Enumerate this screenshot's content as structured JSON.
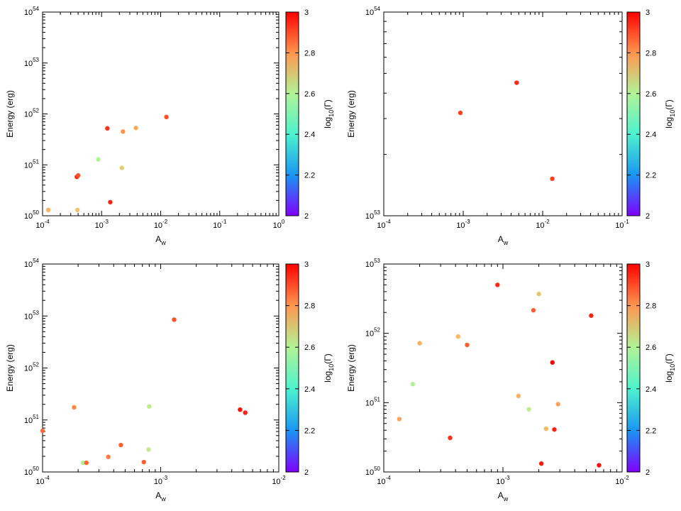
{
  "chart_data": [
    {
      "type": "scatter",
      "xscale": "log",
      "yscale": "log",
      "xlabel": "A_w",
      "ylabel": "Energy (erg)",
      "xlim": [
        0.0001,
        1
      ],
      "ylim": [
        1e+50,
        1e+54
      ],
      "xticks": [
        "10^-4",
        "10^-3",
        "10^-2",
        "10^-1",
        "10^0"
      ],
      "yticks": [
        "10^50",
        "10^51",
        "10^52",
        "10^53",
        "10^54"
      ],
      "colorbar": {
        "label": "log_10(Γ)",
        "range": [
          2,
          3
        ],
        "ticks": [
          "2",
          "2.2",
          "2.4",
          "2.6",
          "2.8",
          "3"
        ]
      },
      "points": [
        {
          "x": 0.000125,
          "y": 1.3e+50,
          "c": 2.76
        },
        {
          "x": 0.00039,
          "y": 1.3e+50,
          "c": 2.72
        },
        {
          "x": 0.00038,
          "y": 5.8e+50,
          "c": 2.95
        },
        {
          "x": 0.0004,
          "y": 6.2e+50,
          "c": 2.9
        },
        {
          "x": 0.00088,
          "y": 1.28e+51,
          "c": 2.6
        },
        {
          "x": 0.00125,
          "y": 5.2e+51,
          "c": 2.94
        },
        {
          "x": 0.0014,
          "y": 1.85e+50,
          "c": 2.96
        },
        {
          "x": 0.0022,
          "y": 8.7e+50,
          "c": 2.7
        },
        {
          "x": 0.0023,
          "y": 4.5e+51,
          "c": 2.8
        },
        {
          "x": 0.0038,
          "y": 5.3e+51,
          "c": 2.77
        },
        {
          "x": 0.0125,
          "y": 8.7e+51,
          "c": 2.9
        }
      ]
    },
    {
      "type": "scatter",
      "xscale": "log",
      "yscale": "log",
      "xlabel": "A_w",
      "ylabel": "Energy (erg)",
      "xlim": [
        0.0001,
        0.1
      ],
      "ylim": [
        1e+53,
        1e+54
      ],
      "xticks": [
        "10^-4",
        "10^-3",
        "10^-2",
        "10^-1"
      ],
      "yticks": [
        "10^53",
        "10^54"
      ],
      "colorbar": {
        "label": "log_10(Γ)",
        "range": [
          2,
          3
        ],
        "ticks": [
          "2",
          "2.2",
          "2.4",
          "2.6",
          "2.8",
          "3"
        ]
      },
      "points": [
        {
          "x": 0.00092,
          "y": 3.2e+53,
          "c": 2.92
        },
        {
          "x": 0.0047,
          "y": 4.5e+53,
          "c": 2.95
        },
        {
          "x": 0.0132,
          "y": 1.52e+53,
          "c": 2.92
        }
      ]
    },
    {
      "type": "scatter",
      "xscale": "log",
      "yscale": "log",
      "xlabel": "A_w",
      "ylabel": "Energy (erg)",
      "xlim": [
        0.0001,
        0.01
      ],
      "ylim": [
        1e+50,
        1e+54
      ],
      "xticks": [
        "10^-4",
        "10^-3",
        "10^-2"
      ],
      "yticks": [
        "10^50",
        "10^51",
        "10^52",
        "10^53",
        "10^54"
      ],
      "colorbar": {
        "label": "log_10(Γ)",
        "range": [
          2,
          3
        ],
        "ticks": [
          "2",
          "2.2",
          "2.4",
          "2.6",
          "2.8",
          "3"
        ]
      },
      "points": [
        {
          "x": 0.0001,
          "y": 6.2e+50,
          "c": 2.86
        },
        {
          "x": 0.000185,
          "y": 1.75e+51,
          "c": 2.82
        },
        {
          "x": 0.00022,
          "y": 1.5e+50,
          "c": 2.6
        },
        {
          "x": 0.000235,
          "y": 1.5e+50,
          "c": 2.87
        },
        {
          "x": 0.00036,
          "y": 1.95e+50,
          "c": 2.84
        },
        {
          "x": 0.00046,
          "y": 3.3e+50,
          "c": 2.88
        },
        {
          "x": 0.00072,
          "y": 1.55e+50,
          "c": 2.88
        },
        {
          "x": 0.00079,
          "y": 2.7e+50,
          "c": 2.63
        },
        {
          "x": 0.0008,
          "y": 1.82e+51,
          "c": 2.63
        },
        {
          "x": 0.0013,
          "y": 8.5e+52,
          "c": 2.9
        },
        {
          "x": 0.0047,
          "y": 1.58e+51,
          "c": 2.98
        },
        {
          "x": 0.0052,
          "y": 1.38e+51,
          "c": 2.96
        }
      ]
    },
    {
      "type": "scatter",
      "xscale": "log",
      "yscale": "log",
      "xlabel": "A_w",
      "ylabel": "Energy (erg)",
      "xlim": [
        0.0001,
        0.01
      ],
      "ylim": [
        1e+50,
        1e+53
      ],
      "xticks": [
        "10^-4",
        "10^-3",
        "10^-2"
      ],
      "yticks": [
        "10^50",
        "10^51",
        "10^52",
        "10^53"
      ],
      "colorbar": {
        "label": "log_10(Γ)",
        "range": [
          2,
          3
        ],
        "ticks": [
          "2",
          "2.2",
          "2.4",
          "2.6",
          "2.8",
          "3"
        ]
      },
      "points": [
        {
          "x": 0.000135,
          "y": 5.8e+50,
          "c": 2.78
        },
        {
          "x": 0.000175,
          "y": 1.85e+51,
          "c": 2.6
        },
        {
          "x": 0.0002,
          "y": 7.2e+51,
          "c": 2.76
        },
        {
          "x": 0.00036,
          "y": 3.1e+50,
          "c": 2.94
        },
        {
          "x": 0.00042,
          "y": 9e+51,
          "c": 2.75
        },
        {
          "x": 0.0005,
          "y": 6.8e+51,
          "c": 2.88
        },
        {
          "x": 0.0009,
          "y": 5e+52,
          "c": 2.95
        },
        {
          "x": 0.00135,
          "y": 1.25e+51,
          "c": 2.76
        },
        {
          "x": 0.00165,
          "y": 8e+50,
          "c": 2.62
        },
        {
          "x": 0.0018,
          "y": 2.15e+52,
          "c": 2.88
        },
        {
          "x": 0.002,
          "y": 3.7e+52,
          "c": 2.72
        },
        {
          "x": 0.0021,
          "y": 1.32e+50,
          "c": 2.97
        },
        {
          "x": 0.0023,
          "y": 4.2e+50,
          "c": 2.74
        },
        {
          "x": 0.0026,
          "y": 3.8e+51,
          "c": 3.0
        },
        {
          "x": 0.0027,
          "y": 4.1e+50,
          "c": 2.96
        },
        {
          "x": 0.0029,
          "y": 9.5e+50,
          "c": 2.78
        },
        {
          "x": 0.0055,
          "y": 1.8e+52,
          "c": 2.96
        },
        {
          "x": 0.0064,
          "y": 1.25e+50,
          "c": 2.98
        }
      ]
    }
  ]
}
